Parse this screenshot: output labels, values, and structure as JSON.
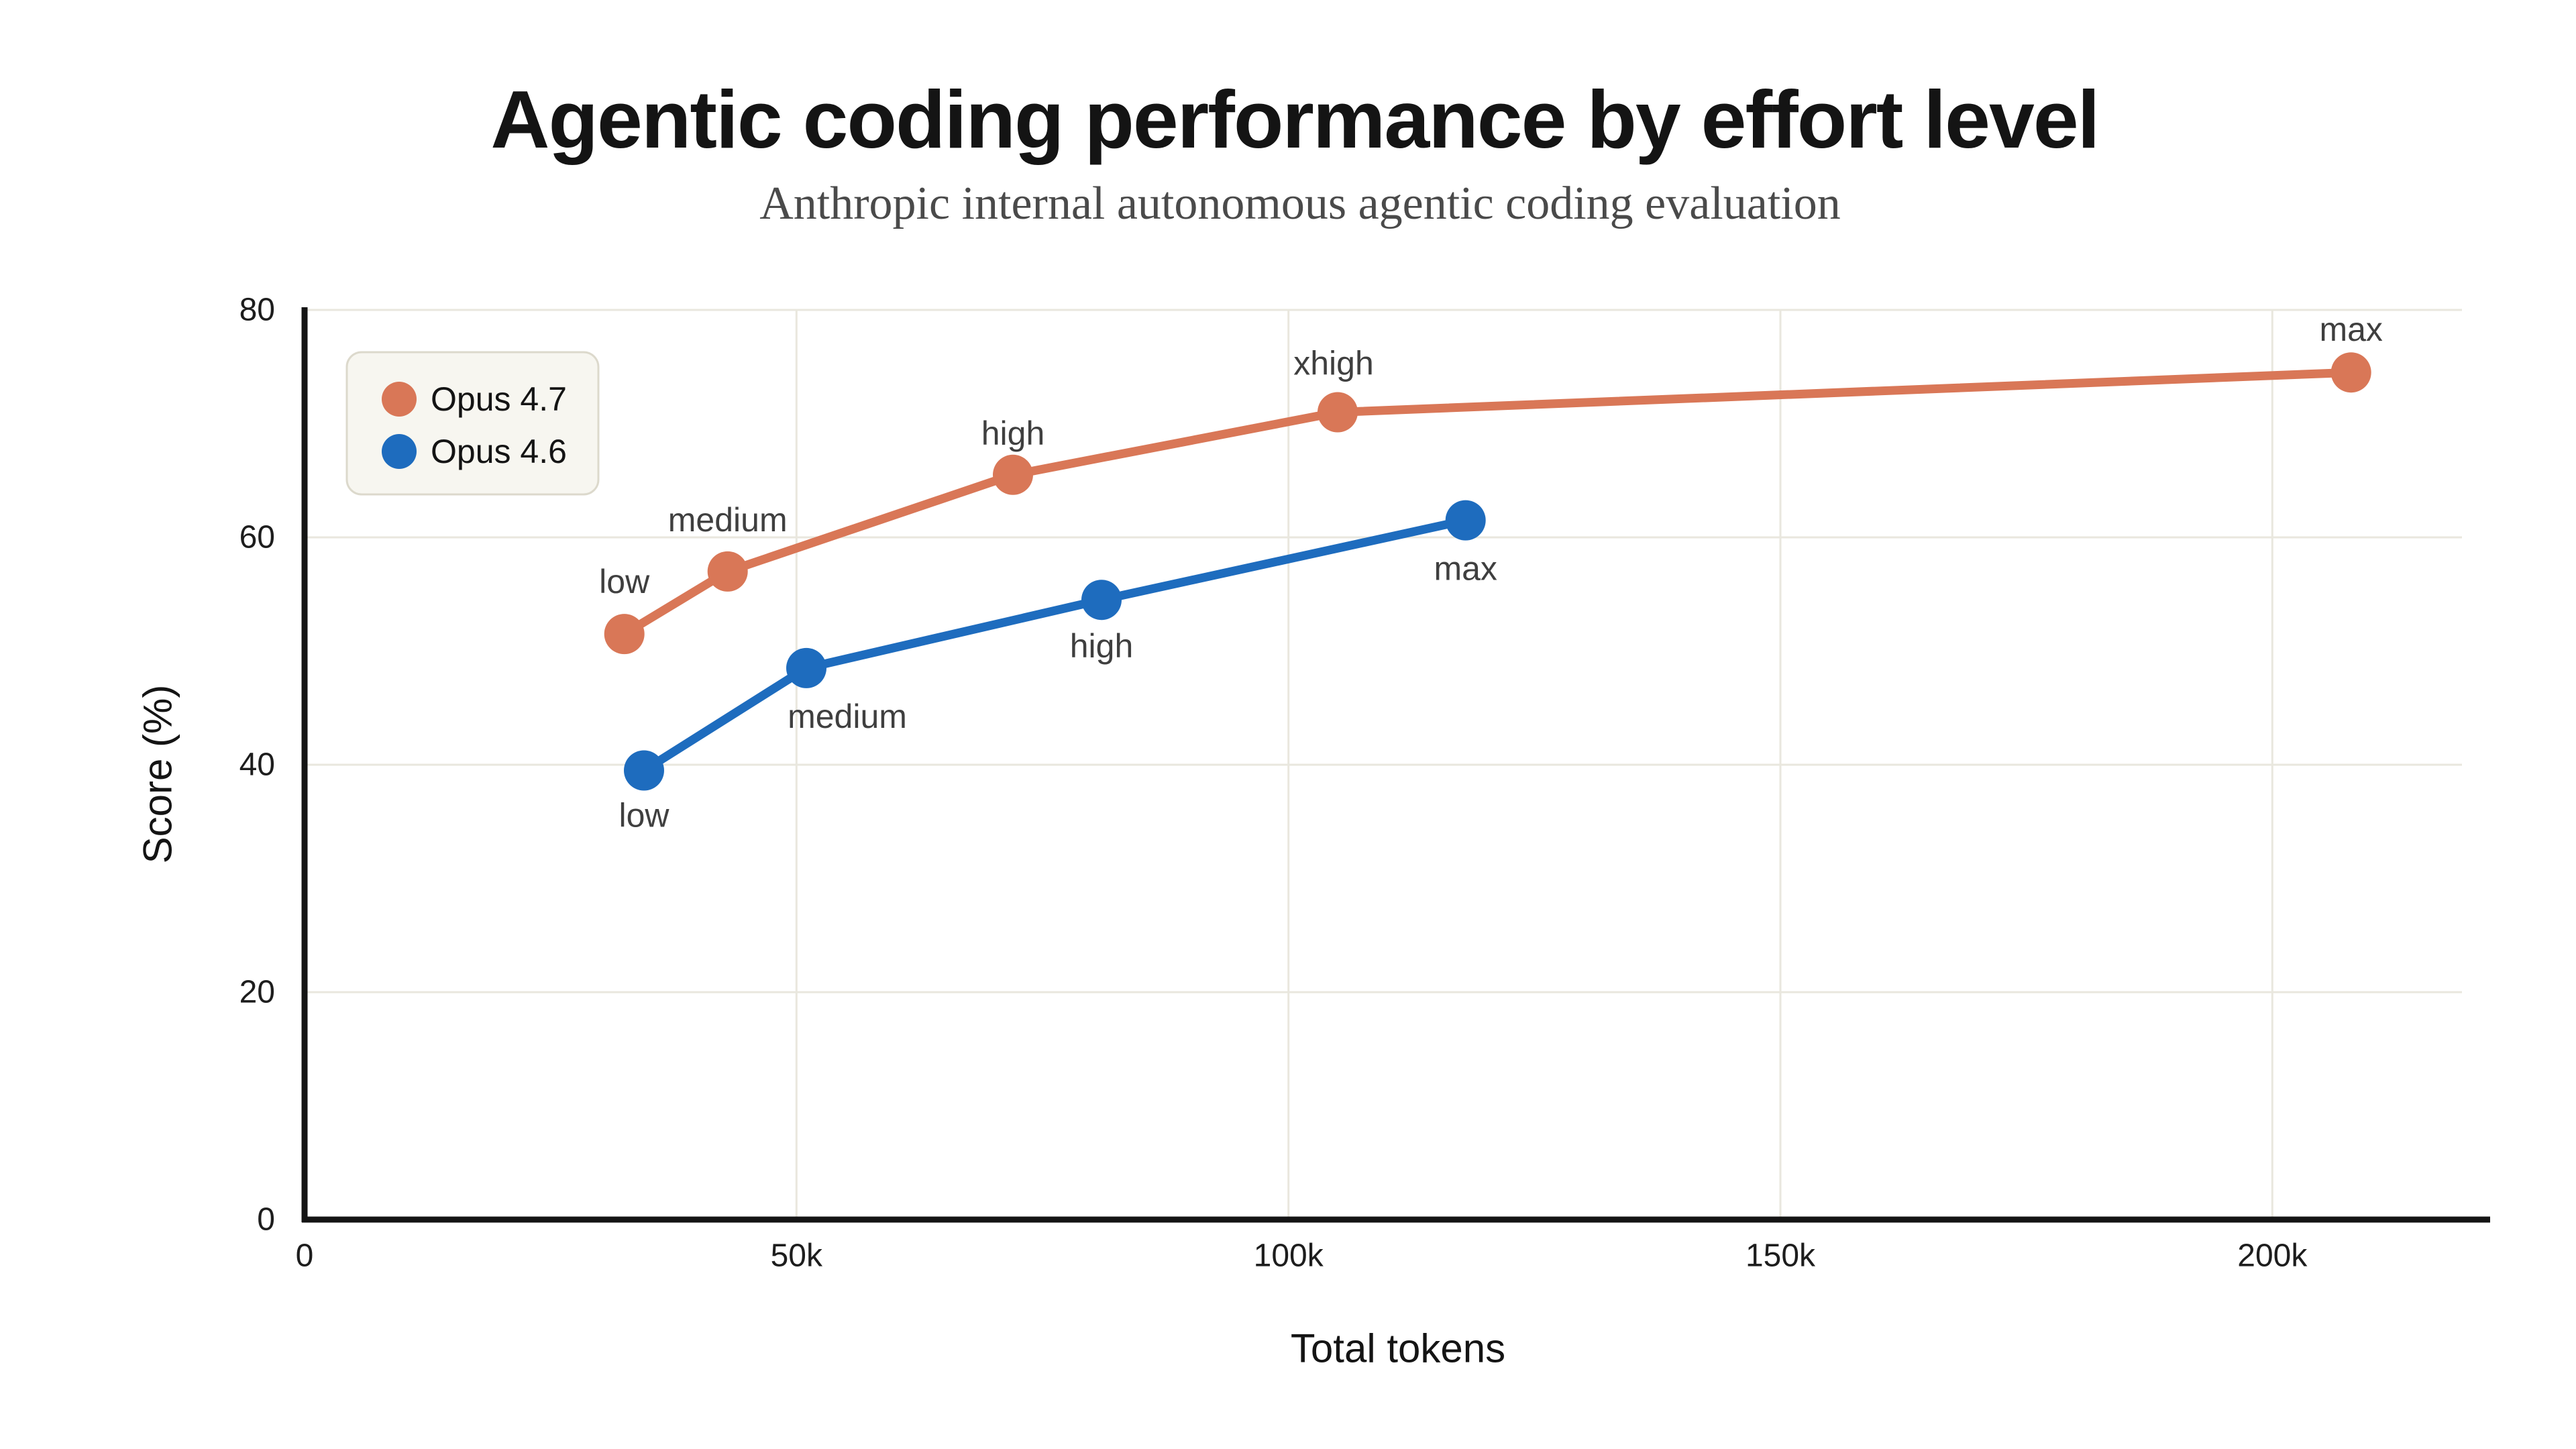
{
  "header": {
    "title": "Agentic coding performance by effort level",
    "subtitle": "Anthropic internal autonomous agentic coding evaluation"
  },
  "chart_data": {
    "type": "line",
    "title": "Agentic coding performance by effort level",
    "subtitle": "Anthropic internal autonomous agentic coding evaluation",
    "xlabel": "Total tokens",
    "ylabel": "Score (%)",
    "x_unit_suffix": "k",
    "xlim_k": [
      0,
      222
    ],
    "ylim": [
      0,
      80
    ],
    "grid": true,
    "legend_position": "top-left",
    "x_ticks": [
      {
        "value_k": 0,
        "label": "0"
      },
      {
        "value_k": 50,
        "label": "50k"
      },
      {
        "value_k": 100,
        "label": "100k"
      },
      {
        "value_k": 150,
        "label": "150k"
      },
      {
        "value_k": 200,
        "label": "200k"
      }
    ],
    "y_ticks": [
      {
        "value": 0,
        "label": "0"
      },
      {
        "value": 20,
        "label": "20"
      },
      {
        "value": 40,
        "label": "40"
      },
      {
        "value": 60,
        "label": "60"
      },
      {
        "value": 80,
        "label": "80"
      }
    ],
    "series": [
      {
        "name": "Opus 4.7",
        "color": "#D97757",
        "points": [
          {
            "label": "low",
            "tokens_k": 32.5,
            "score": 51.5,
            "label_dx": 0,
            "label_dy": -78
          },
          {
            "label": "medium",
            "tokens_k": 43,
            "score": 57,
            "label_dx": 0,
            "label_dy": -77
          },
          {
            "label": "high",
            "tokens_k": 72,
            "score": 65.5,
            "label_dx": 0,
            "label_dy": -62
          },
          {
            "label": "xhigh",
            "tokens_k": 105,
            "score": 71,
            "label_dx": -6,
            "label_dy": -73
          },
          {
            "label": "max",
            "tokens_k": 208,
            "score": 74.5,
            "label_dx": 0,
            "label_dy": -64
          }
        ]
      },
      {
        "name": "Opus 4.6",
        "color": "#1E6CBE",
        "points": [
          {
            "label": "low",
            "tokens_k": 34.5,
            "score": 39.5,
            "label_dx": 0,
            "label_dy": 67
          },
          {
            "label": "medium",
            "tokens_k": 51,
            "score": 48.5,
            "label_dx": 61,
            "label_dy": 72
          },
          {
            "label": "high",
            "tokens_k": 81,
            "score": 54.5,
            "label_dx": 0,
            "label_dy": 69
          },
          {
            "label": "max",
            "tokens_k": 118,
            "score": 61.5,
            "label_dx": 0,
            "label_dy": 72
          }
        ]
      }
    ]
  },
  "legend": {
    "entries": [
      {
        "label": "Opus 4.7",
        "color": "#D97757"
      },
      {
        "label": "Opus 4.6",
        "color": "#1E6CBE"
      }
    ]
  },
  "colors": {
    "accent_orange": "#D97757",
    "accent_blue": "#1E6CBE",
    "grid": "#e9e7de",
    "axis": "#141414",
    "legend_bg": "#f7f6f0",
    "legend_border": "#dcd9cc",
    "subtitle_text": "#4a4a4a",
    "point_label_text": "#3f3f3f",
    "background": "#ffffff"
  }
}
